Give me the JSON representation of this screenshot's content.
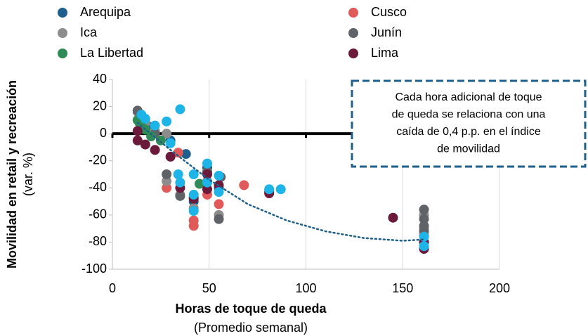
{
  "chart_data": {
    "type": "scatter",
    "ylabel": "Movilidad en retail y recreación",
    "ylabel_sub": "(var. %)",
    "xlabel": "Horas de toque de queda",
    "xlabel_sub": "(Promedio semanal)",
    "annotation": [
      "Cada hora adicional de toque",
      "de queda se relaciona con una",
      "caída de 0,4 p.p. en el índice",
      "de movilidad"
    ],
    "xlim": [
      0,
      200
    ],
    "xticks": [
      0,
      50,
      100,
      150,
      200
    ],
    "ylim": [
      -100,
      40
    ],
    "yticks": [
      -100,
      -80,
      -60,
      -40,
      -20,
      0,
      20,
      40
    ],
    "grid": true,
    "series": [
      {
        "name": "Arequipa",
        "color": "#1f5f8b",
        "x": [
          38,
          14,
          20,
          30,
          42,
          55,
          161,
          49
        ],
        "values": [
          -15,
          12,
          5,
          -5,
          -50,
          -40,
          -80,
          -25
        ]
      },
      {
        "name": "Cusco",
        "color": "#e05a5a",
        "x": [
          28,
          42,
          42,
          49,
          55,
          68,
          81,
          34,
          161
        ],
        "values": [
          -40,
          -64,
          -68,
          -45,
          -52,
          -38,
          -42,
          -14,
          -75
        ]
      },
      {
        "name": "Ica",
        "color": "#8c8c8c",
        "x": [
          13,
          17,
          22,
          28,
          35,
          42,
          49,
          55,
          161,
          161,
          28
        ],
        "values": [
          16,
          8,
          2,
          -35,
          -45,
          -55,
          -35,
          -60,
          -60,
          -70,
          0
        ]
      },
      {
        "name": "Junín",
        "color": "#5f6368",
        "x": [
          13,
          22,
          28,
          35,
          42,
          49,
          55,
          56,
          81,
          161,
          161,
          161,
          161
        ],
        "values": [
          17,
          0,
          -30,
          -46,
          -47,
          -28,
          -63,
          -32,
          -43,
          -56,
          -63,
          -68,
          -72
        ]
      },
      {
        "name": "La Libertad",
        "color": "#2e8b57",
        "x": [
          13,
          15,
          17,
          20,
          25,
          45,
          14
        ],
        "values": [
          10,
          6,
          3,
          -2,
          -5,
          -37,
          8
        ]
      },
      {
        "name": "Lima",
        "color": "#6b1a3c",
        "x": [
          13,
          13,
          17,
          22,
          30,
          35,
          42,
          49,
          49,
          55,
          81,
          145,
          161,
          161
        ],
        "values": [
          2,
          -5,
          -8,
          -12,
          -17,
          -40,
          -48,
          -30,
          -41,
          -38,
          -44,
          -62,
          -85,
          -80
        ]
      },
      {
        "name": null,
        "color": "#1eb4e8",
        "x": [
          15,
          17,
          22,
          28,
          35,
          30,
          34,
          35,
          42,
          42,
          42,
          49,
          49,
          55,
          55,
          81,
          87,
          161,
          161
        ],
        "values": [
          14,
          11,
          6,
          9,
          18,
          -7,
          -30,
          -36,
          -30,
          -45,
          -57,
          -22,
          -36,
          -31,
          -43,
          -41,
          -41,
          -76,
          -83
        ]
      }
    ],
    "trendline": {
      "color": "#1f5f8b",
      "x": [
        13,
        30,
        50,
        70,
        90,
        110,
        130,
        150,
        161
      ],
      "values": [
        8,
        -12,
        -34,
        -52,
        -64,
        -72,
        -77,
        -79,
        -78
      ]
    }
  }
}
